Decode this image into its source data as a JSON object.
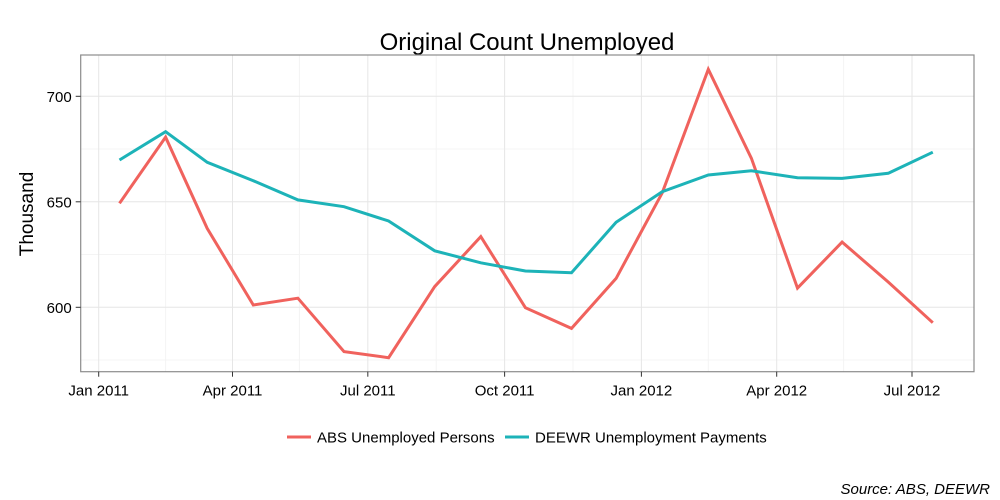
{
  "chart_data": {
    "type": "line",
    "title": "Original Count Unemployed",
    "xlabel": "",
    "ylabel": "Thousand",
    "caption": "Source: ABS, DEEWR",
    "x": [
      "2011-01-15",
      "2011-02-15",
      "2011-03-15",
      "2011-04-15",
      "2011-05-15",
      "2011-06-15",
      "2011-07-15",
      "2011-08-15",
      "2011-09-15",
      "2011-10-15",
      "2011-11-15",
      "2011-12-15",
      "2012-01-15",
      "2012-02-15",
      "2012-03-15",
      "2012-04-15",
      "2012-05-15",
      "2012-06-15",
      "2012-07-15"
    ],
    "x_day_offsets": [
      14,
      45,
      73,
      104,
      134,
      165,
      195,
      226,
      257,
      287,
      318,
      348,
      379,
      410,
      439,
      470,
      500,
      531,
      561
    ],
    "series": [
      {
        "name": "ABS Unemployed Persons",
        "color": "#F0625D",
        "values": [
          649.3,
          680.6,
          637.4,
          601.1,
          604.3,
          579.0,
          576.1,
          609.8,
          633.5,
          599.8,
          590.0,
          613.7,
          654.2,
          712.8,
          670.6,
          609.1,
          630.9,
          612.0,
          592.7
        ]
      },
      {
        "name": "DEEWR Unemployment Payments",
        "color": "#1DB3B8",
        "values": [
          669.8,
          683.2,
          668.7,
          660.0,
          650.9,
          647.7,
          640.9,
          626.8,
          621.1,
          617.2,
          616.4,
          640.3,
          654.8,
          662.7,
          664.7,
          661.4,
          661.1,
          663.5,
          673.5
        ]
      }
    ],
    "x_ticks": [
      {
        "label": "Jan 2011",
        "day": 0
      },
      {
        "label": "Apr 2011",
        "day": 90
      },
      {
        "label": "Jul 2011",
        "day": 181
      },
      {
        "label": "Oct 2011",
        "day": 273
      },
      {
        "label": "Jan 2012",
        "day": 365
      },
      {
        "label": "Apr 2012",
        "day": 456
      },
      {
        "label": "Jul 2012",
        "day": 547
      }
    ],
    "x_minor_days": [
      45,
      135,
      227,
      319,
      410,
      501
    ],
    "y_ticks": [
      600,
      650,
      700
    ],
    "y_minor": [
      575,
      625,
      675
    ],
    "ylim": [
      570.6,
      720.2
    ],
    "grid": true,
    "legend_position": "bottom"
  },
  "legend": {
    "items": [
      {
        "label": "ABS Unemployed Persons",
        "color": "#F0625D"
      },
      {
        "label": "DEEWR Unemployment Payments",
        "color": "#1DB3B8"
      }
    ]
  }
}
